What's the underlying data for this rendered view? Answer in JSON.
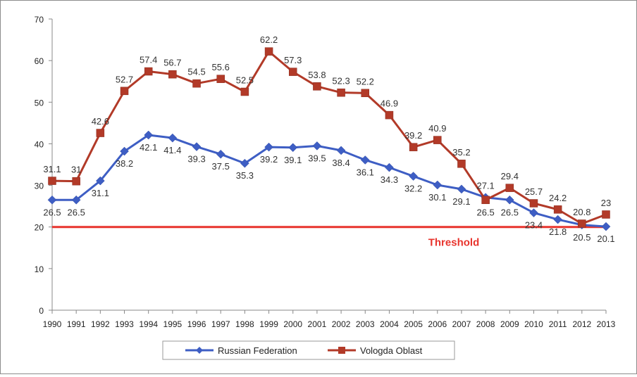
{
  "chart_data": {
    "type": "line",
    "title": "",
    "xlabel": "",
    "ylabel": "",
    "ylim": [
      0,
      70
    ],
    "yticks": [
      0,
      10,
      20,
      30,
      40,
      50,
      60,
      70
    ],
    "grid": false,
    "legend_position": "bottom-center",
    "x": [
      "1990",
      "1991",
      "1992",
      "1993",
      "1994",
      "1995",
      "1996",
      "1997",
      "1998",
      "1999",
      "2000",
      "2001",
      "2002",
      "2003",
      "2004",
      "2005",
      "2006",
      "2007",
      "2008",
      "2009",
      "2010",
      "2011",
      "2012",
      "2013"
    ],
    "series": [
      {
        "name": "Russian Federation",
        "color": "#3e5ec4",
        "marker": "diamond",
        "values": [
          26.5,
          26.5,
          31.1,
          38.2,
          42.1,
          41.4,
          39.3,
          37.5,
          35.3,
          39.2,
          39.1,
          39.5,
          38.4,
          36.1,
          34.3,
          32.2,
          30.1,
          29.1,
          27.1,
          26.5,
          23.4,
          21.8,
          20.5,
          20.1
        ]
      },
      {
        "name": "Vologda Oblast",
        "color": "#b23a28",
        "marker": "square",
        "values": [
          31.1,
          31,
          42.6,
          52.7,
          57.4,
          56.7,
          54.5,
          55.6,
          52.5,
          62.2,
          57.3,
          53.8,
          52.3,
          52.2,
          46.9,
          39.2,
          40.9,
          35.2,
          26.5,
          29.4,
          25.7,
          24.2,
          20.8,
          23
        ]
      }
    ],
    "threshold": {
      "value": 20,
      "label": "Threshold",
      "color": "#e8342d"
    }
  }
}
